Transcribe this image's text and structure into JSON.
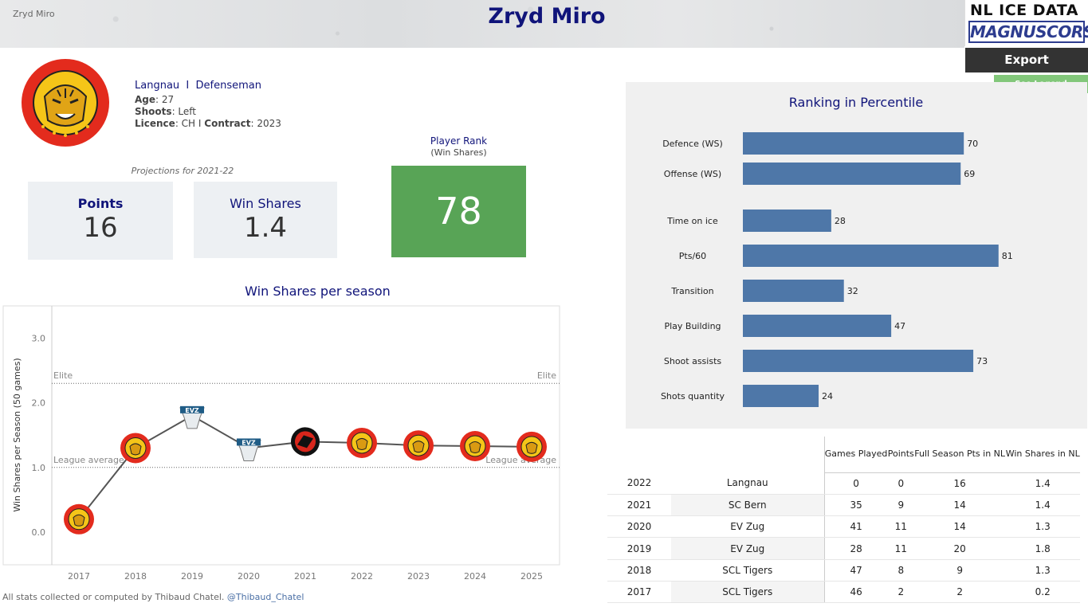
{
  "header": {
    "small_title": "Zryd Miro",
    "title": "Zryd Miro",
    "brand_line1": "NL ICE DATA",
    "brand_line2": "MAGNUSCORSI"
  },
  "buttons": {
    "export": "Export",
    "legend": "See Legend"
  },
  "player": {
    "team": "Langnau",
    "separator": "I",
    "position": "Defenseman",
    "age_label": "Age",
    "age": "27",
    "shoots_label": "Shoots",
    "shoots": "Left",
    "licence_label": "Licence",
    "licence": "CH",
    "contract_label": "Contract",
    "contract": "2023"
  },
  "projections": {
    "label": "Projections for 2021-22",
    "points_label": "Points",
    "points": "16",
    "ws_label": "Win Shares",
    "ws": "1.4"
  },
  "rank": {
    "title": "Player Rank",
    "subtitle": "(Win Shares)",
    "value": "78",
    "color": "#58a456"
  },
  "colors": {
    "accent": "#10147a",
    "bar": "#4e77a8",
    "line": "#555555"
  },
  "chart_data": [
    {
      "type": "bar",
      "orientation": "horizontal",
      "title": "Ranking in Percentile",
      "categories": [
        "Defence (WS)",
        "Offense (WS)",
        "Time on ice",
        "Pts/60",
        "Transition",
        "Play Building",
        "Shoot assists",
        "Shots quantity"
      ],
      "values": [
        70,
        69,
        28,
        81,
        32,
        47,
        73,
        24
      ],
      "xlim": [
        0,
        100
      ],
      "grid": false
    },
    {
      "type": "line",
      "title": "Win Shares per season",
      "ylabel": "Win Shares per Season (50 games)",
      "x": [
        "2017",
        "2018",
        "2019",
        "2020",
        "2021",
        "2022",
        "2023",
        "2024",
        "2025"
      ],
      "values": [
        0.2,
        1.3,
        1.8,
        1.3,
        1.4,
        1.38,
        1.34,
        1.33,
        1.32
      ],
      "markers": [
        "scl-tigers-logo",
        "scl-tigers-logo",
        "ev-zug-logo",
        "ev-zug-logo",
        "sc-bern-logo",
        "scl-tigers-logo",
        "scl-tigers-logo",
        "scl-tigers-logo",
        "scl-tigers-logo"
      ],
      "yticks": [
        "0.0",
        "1.0",
        "2.0",
        "3.0"
      ],
      "ylim": [
        -0.5,
        3.5
      ],
      "reference_lines": [
        {
          "label": "Elite",
          "value": 2.3
        },
        {
          "label": "League average",
          "value": 1.0
        }
      ],
      "grid": false
    }
  ],
  "table": {
    "headers": [
      "",
      "",
      "Games Played",
      "Points",
      "Full Season Pts in NL",
      "Win Shares in NL"
    ],
    "rows": [
      [
        "2022",
        "Langnau",
        "0",
        "0",
        "16",
        "1.4"
      ],
      [
        "2021",
        "SC Bern",
        "35",
        "9",
        "14",
        "1.4"
      ],
      [
        "2020",
        "EV Zug",
        "41",
        "11",
        "14",
        "1.3"
      ],
      [
        "2019",
        "EV Zug",
        "28",
        "11",
        "20",
        "1.8"
      ],
      [
        "2018",
        "SCL Tigers",
        "47",
        "8",
        "9",
        "1.3"
      ],
      [
        "2017",
        "SCL Tigers",
        "46",
        "2",
        "2",
        "0.2"
      ]
    ]
  },
  "footer": {
    "text": "All stats collected or computed by Thibaud Chatel.",
    "handle": "@Thibaud_Chatel"
  }
}
